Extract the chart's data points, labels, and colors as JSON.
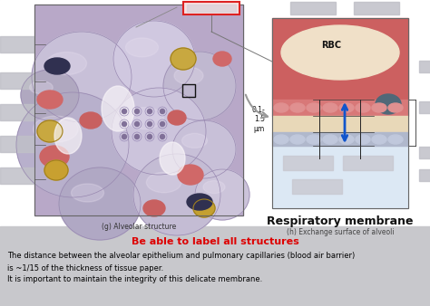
{
  "bg_color": "#f0eeee",
  "top_bg_color": "#ffffff",
  "bottom_bg_color": "#d8d8dc",
  "label_g": "(g) Alveolar structure",
  "label_h": "(h) Exchange surface of alveoli",
  "resp_membrane_title": "Respiratory membrane",
  "rbc_label": "RBC",
  "measurement_label": "0.1-\n1.5\nμm",
  "highlight_text": "Be able to label all structures",
  "highlight_color": "#dd0000",
  "body_text_line1": "The distance between the alveolar epithelium and pulmonary capillaries (blood air barrier)",
  "body_text_line2": "is ~1/15 of the thickness of tissue paper.",
  "body_text_line3": "It is important to maintain the integrity of this delicate membrane.",
  "body_text_color": "#000000",
  "arrow_color": "#1155cc",
  "gray_label_color": "#c0c0c8",
  "red_box_fill": "#f8e0e0",
  "red_box_edge": "#dd2222"
}
